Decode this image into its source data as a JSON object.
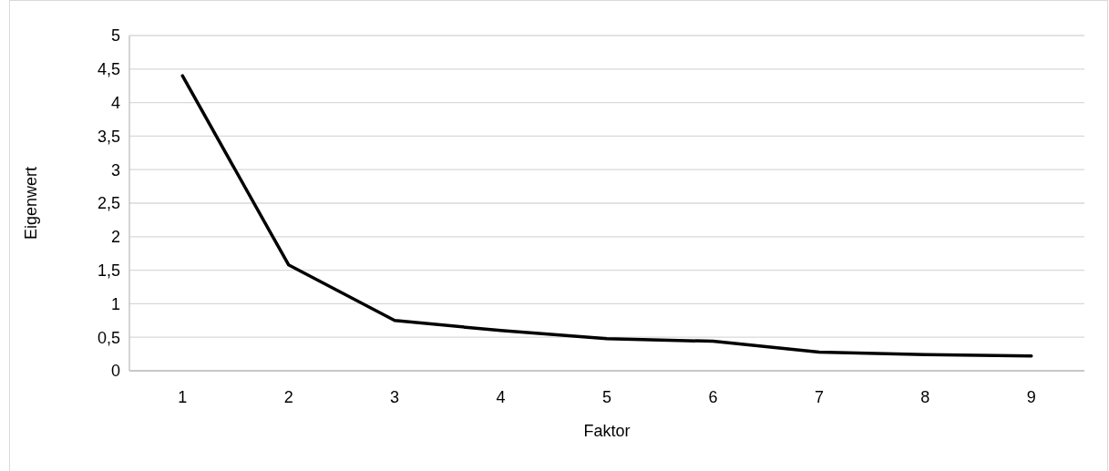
{
  "chart_data": {
    "type": "line",
    "xlabel": "Faktor",
    "ylabel": "Eigenwert",
    "categories": [
      "1",
      "2",
      "3",
      "4",
      "5",
      "6",
      "7",
      "8",
      "9"
    ],
    "series": [
      {
        "color": "#000000",
        "values": [
          4.4,
          1.58,
          0.75,
          0.6,
          0.48,
          0.44,
          0.28,
          0.24,
          0.22
        ]
      }
    ],
    "ylim": [
      0,
      5
    ],
    "yticks": [
      0,
      {
        "value": 0.5,
        "label": "0,5"
      },
      1,
      {
        "value": 1.5,
        "label": "1,5"
      },
      2,
      {
        "value": 2.5,
        "label": "2,5"
      },
      3,
      {
        "value": 3.5,
        "label": "3,5"
      },
      4,
      {
        "value": 4.5,
        "label": "4,5"
      },
      5
    ],
    "grid": "y",
    "marker": "none",
    "line_style": "solid"
  }
}
